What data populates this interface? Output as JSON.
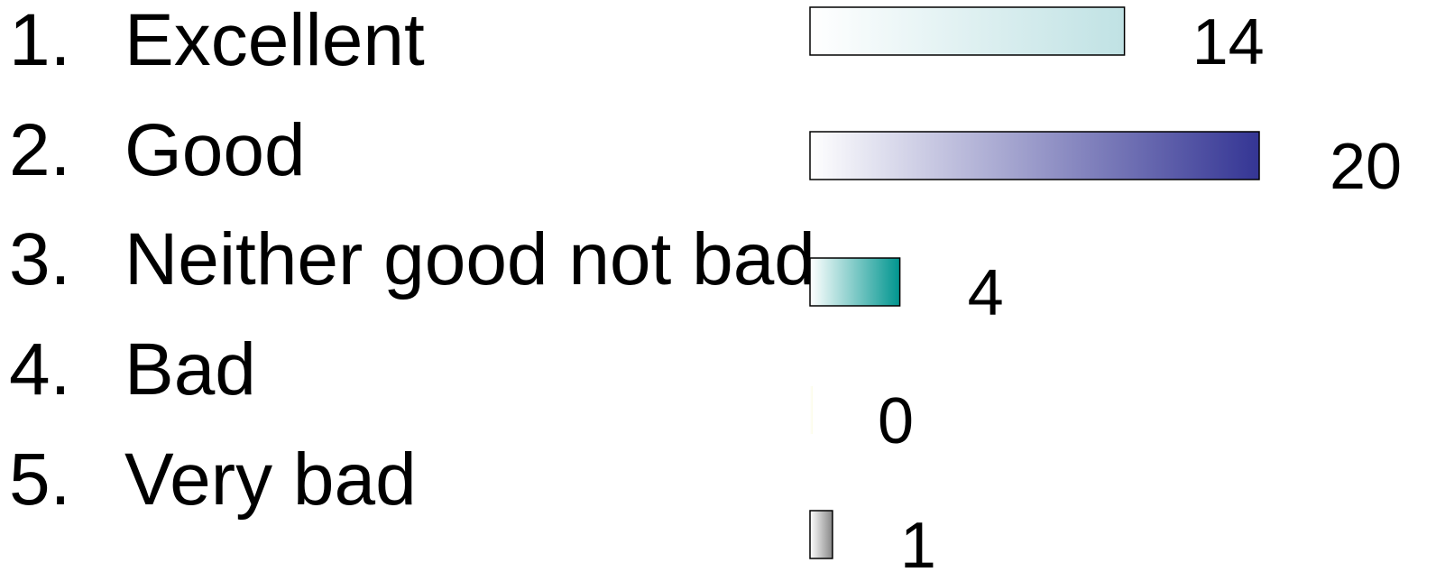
{
  "options": [
    {
      "number": "1.",
      "label": "Excellent"
    },
    {
      "number": "2.",
      "label": "Good"
    },
    {
      "number": "3.",
      "label": "Neither good not bad"
    },
    {
      "number": "4.",
      "label": "Bad"
    },
    {
      "number": "5.",
      "label": "Very bad"
    }
  ],
  "chart_data": {
    "type": "bar",
    "orientation": "horizontal",
    "values": [
      14,
      20,
      4,
      0,
      1
    ],
    "value_labels": [
      "14",
      "20",
      "4",
      "0",
      "1"
    ],
    "grid": false,
    "legend": "none",
    "bar_colors": [
      "#c0e2e4",
      "#343594",
      "#00958f",
      "#fbfbe5",
      "#878787"
    ]
  }
}
